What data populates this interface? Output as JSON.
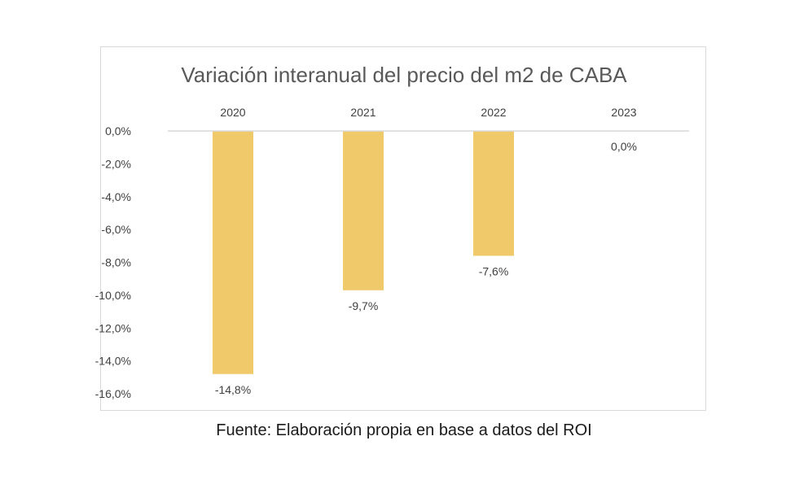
{
  "chart_data": {
    "type": "bar",
    "title": "Variación interanual del precio del m2  de CABA",
    "categories": [
      "2020",
      "2021",
      "2022",
      "2023"
    ],
    "values": [
      -14.8,
      -9.7,
      -7.6,
      0.0
    ],
    "data_labels": [
      "-14,8%",
      "-9,7%",
      "-7,6%",
      "0,0%"
    ],
    "ylim": [
      -16,
      0
    ],
    "yticks": [
      0,
      -2,
      -4,
      -6,
      -8,
      -10,
      -12,
      -14,
      -16
    ],
    "ytick_labels": [
      "0,0%",
      "-2,0%",
      "-4,0%",
      "-6,0%",
      "-8,0%",
      "-10,0%",
      "-12,0%",
      "-14,0%",
      "-16,0%"
    ],
    "x_axis_position": "top",
    "grid": false,
    "legend": "none",
    "bar_color": "#f0c96a",
    "axis_color": "#d9d9d9"
  },
  "caption": "Fuente: Elaboración propia en base a datos del ROI"
}
